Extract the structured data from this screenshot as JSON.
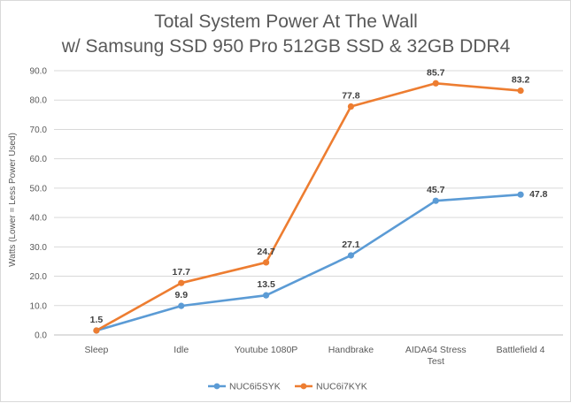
{
  "chart_data": {
    "type": "line",
    "title_lines": [
      "Total System Power At The Wall",
      "w/ Samsung SSD 950 Pro 512GB SSD & 32GB DDR4"
    ],
    "ylabel": "Watts (Lower = Less Power Used)",
    "xlabel": "",
    "ylim": [
      0,
      90
    ],
    "y_ticks": [
      0,
      10,
      20,
      30,
      40,
      50,
      60,
      70,
      80,
      90
    ],
    "y_tick_labels": [
      "0.0",
      "10.0",
      "20.0",
      "30.0",
      "40.0",
      "50.0",
      "60.0",
      "70.0",
      "80.0",
      "90.0"
    ],
    "categories": [
      "Sleep",
      "Idle",
      "Youtube 1080P",
      "Handbrake",
      "AIDA64 Stress Test",
      "Battlefield 4"
    ],
    "category_lines": [
      [
        "Sleep"
      ],
      [
        "Idle"
      ],
      [
        "Youtube 1080P"
      ],
      [
        "Handbrake"
      ],
      [
        "AIDA64 Stress",
        "Test"
      ],
      [
        "Battlefield 4"
      ]
    ],
    "series": [
      {
        "name": "NUC6i5SYK",
        "color": "#5b9bd5",
        "values": [
          1.5,
          9.9,
          13.5,
          27.1,
          45.7,
          47.8
        ],
        "labels": [
          "",
          "9.9",
          "13.5",
          "27.1",
          "45.7",
          "47.8"
        ]
      },
      {
        "name": "NUC6i7KYK",
        "color": "#ed7d31",
        "values": [
          1.5,
          17.7,
          24.7,
          77.8,
          85.7,
          83.2
        ],
        "labels": [
          "1.5",
          "17.7",
          "24.7",
          "77.8",
          "85.7",
          "83.2"
        ]
      }
    ],
    "grid": true,
    "legend": "bottom-center"
  }
}
